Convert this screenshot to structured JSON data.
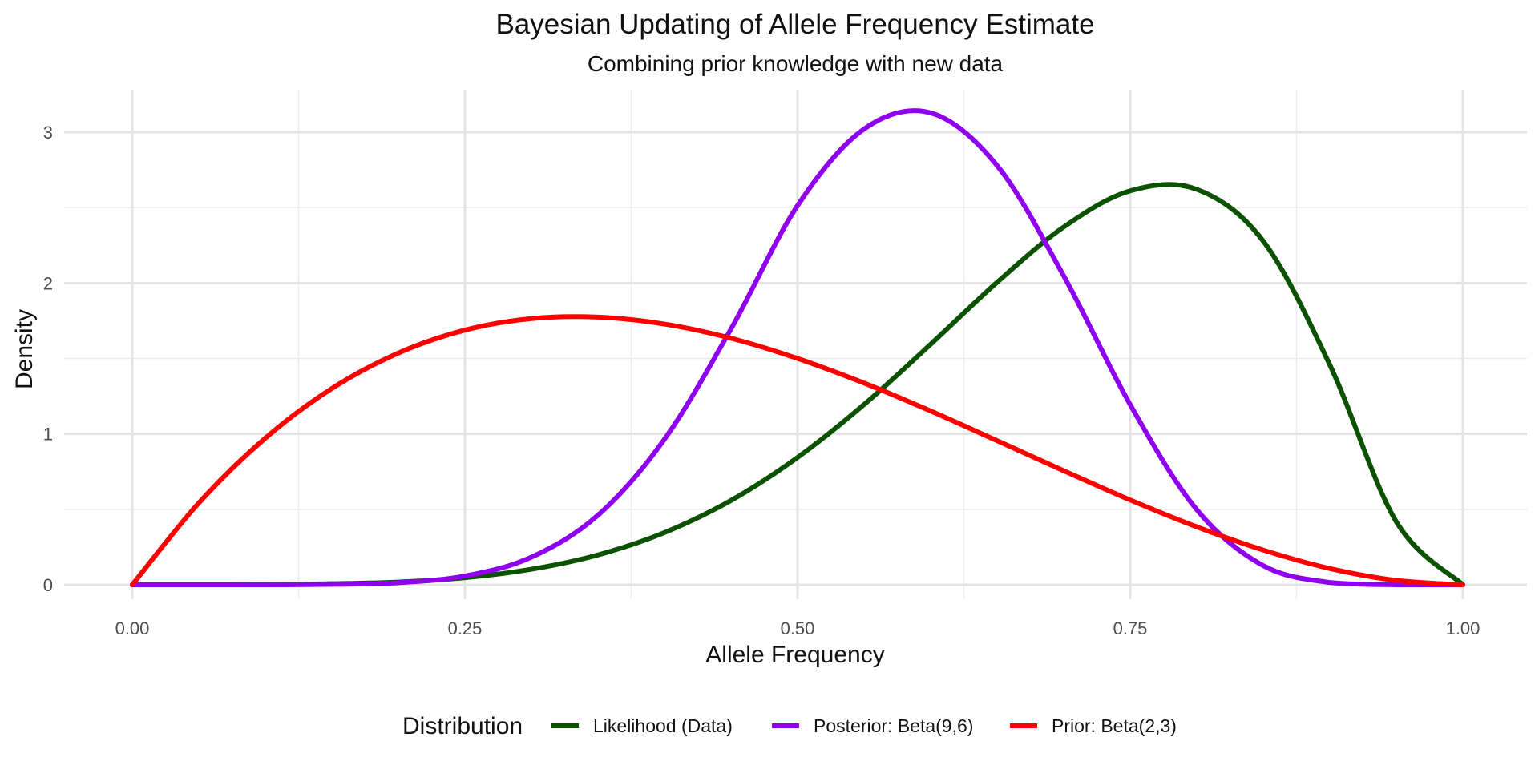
{
  "chart_data": {
    "type": "line",
    "title": "Bayesian Updating of Allele Frequency Estimate",
    "subtitle": "Combining prior knowledge with new data",
    "xlabel": "Allele Frequency",
    "ylabel": "Density",
    "xlim": [
      0,
      1
    ],
    "ylim": [
      0,
      3.2
    ],
    "x_ticks": [
      0,
      0.25,
      0.5,
      0.75,
      1
    ],
    "x_tick_labels": [
      "0.00",
      "0.25",
      "0.50",
      "0.75",
      "1.00"
    ],
    "y_ticks": [
      0,
      1,
      2,
      3
    ],
    "y_tick_labels": [
      "0",
      "1",
      "2",
      "3"
    ],
    "grid": true,
    "legend": {
      "title": "Distribution",
      "position": "bottom"
    },
    "x": [
      0,
      0.05,
      0.1,
      0.15,
      0.2,
      0.25,
      0.3,
      0.35,
      0.4,
      0.45,
      0.5,
      0.55,
      0.6,
      0.65,
      0.7,
      0.75,
      0.8,
      0.85,
      0.9,
      0.95,
      1
    ],
    "series": [
      {
        "name": "Likelihood (Data)",
        "color": "#0b5200",
        "values": [
          0,
          0,
          0.001,
          0.007,
          0.018,
          0.047,
          0.103,
          0.198,
          0.346,
          0.559,
          0.844,
          1.195,
          1.594,
          2.005,
          2.371,
          2.611,
          2.621,
          2.278,
          1.458,
          0.418,
          0
        ]
      },
      {
        "name": "Posterior: Beta(9,6)",
        "color": "#8f00ee",
        "values": [
          0,
          0,
          0.0001,
          0.003,
          0.014,
          0.058,
          0.183,
          0.461,
          0.965,
          1.696,
          2.513,
          3.021,
          3.128,
          2.778,
          2.048,
          1.194,
          0.498,
          0.127,
          0.015,
          0.0002,
          0
        ]
      },
      {
        "name": "Prior: Beta(2,3)",
        "color": "#ff0000",
        "values": [
          0,
          0.542,
          0.972,
          1.301,
          1.536,
          1.688,
          1.764,
          1.774,
          1.728,
          1.634,
          1.5,
          1.337,
          1.152,
          0.955,
          0.756,
          0.562,
          0.384,
          0.23,
          0.108,
          0.029,
          0
        ]
      }
    ]
  }
}
